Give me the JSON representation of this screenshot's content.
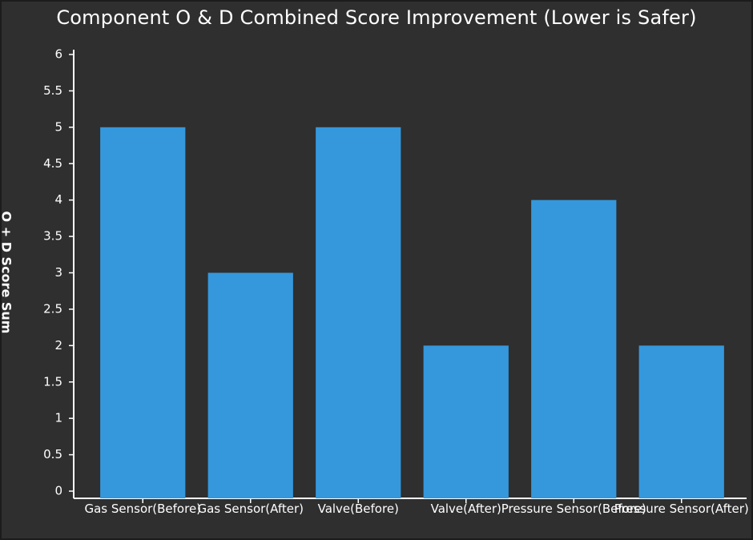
{
  "chart_data": {
    "type": "bar",
    "title": "Component O & D Combined Score Improvement (Lower is Safer)",
    "ylabel": "O + D Score Sum",
    "xlabel": "",
    "categories": [
      "Gas Sensor(Before)",
      "Gas Sensor(After)",
      "Valve(Before)",
      "Valve(After)",
      "Pressure Sensor(Before)",
      "Pressure Sensor(After)"
    ],
    "values": [
      5,
      3,
      5,
      2,
      4,
      2
    ],
    "ylim": [
      0,
      6
    ],
    "yticks": [
      "0",
      "0.5",
      "1",
      "1.5",
      "2",
      "2.5",
      "3",
      "3.5",
      "4",
      "4.5",
      "5",
      "5.5",
      "6"
    ],
    "bar_color": "#3598dc",
    "background_color": "#2f2f2f",
    "grid": false,
    "legend": "none"
  }
}
